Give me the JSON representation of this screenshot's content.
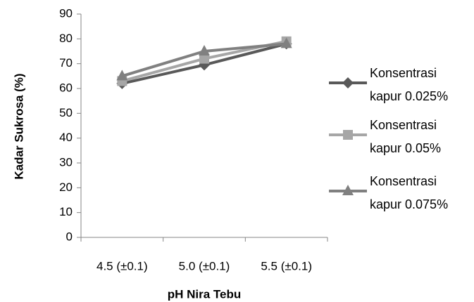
{
  "chart_data": {
    "type": "line",
    "x_label": "pH Nira Tebu",
    "y_label": "Kadar Sukrosa (%)",
    "categories": [
      "4.5 (±0.1)",
      "5.0 (±0.1)",
      "5.5 (±0.1)"
    ],
    "series": [
      {
        "name": "Konsentrasi kapur 0.025%",
        "color": "#595959",
        "marker": "diamond",
        "values": [
          62,
          69.5,
          78
        ]
      },
      {
        "name": "Konsentrasi kapur 0.05%",
        "color": "#a6a6a6",
        "marker": "square",
        "values": [
          63,
          72,
          79
        ]
      },
      {
        "name": "Konsentrasi kapur 0.075%",
        "color": "#808080",
        "marker": "triangle",
        "values": [
          65,
          75,
          78
        ]
      }
    ],
    "ylim": [
      0,
      90
    ],
    "yticks": [
      0,
      10,
      20,
      30,
      40,
      50,
      60,
      70,
      80,
      90
    ],
    "grid": false,
    "legend": "right"
  }
}
